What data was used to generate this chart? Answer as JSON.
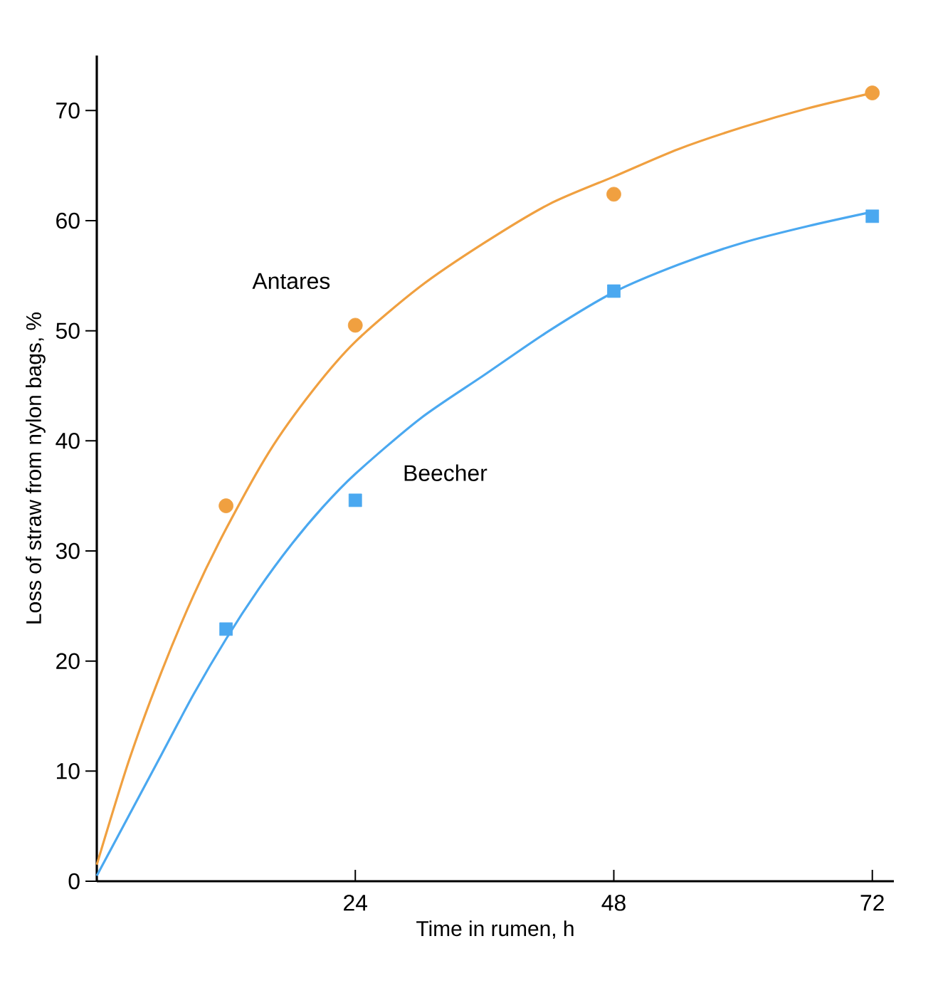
{
  "chart_data": {
    "type": "scatter",
    "xlabel": "Time in rumen,  h",
    "ylabel": "Loss of straw from nylon bags,  %",
    "xlim": [
      0,
      74
    ],
    "ylim": [
      0,
      75
    ],
    "xticks": [
      24,
      48,
      72
    ],
    "yticks": [
      0,
      10,
      20,
      30,
      40,
      50,
      60,
      70
    ],
    "grid": false,
    "legend": false,
    "series": [
      {
        "name": "Antares",
        "marker": "circle",
        "color": "#f0a040",
        "x": [
          12,
          24,
          48,
          72
        ],
        "values": [
          34.1,
          50.5,
          62.4,
          71.6
        ]
      },
      {
        "name": "Beecher",
        "marker": "square",
        "color": "#4aa8f0",
        "x": [
          12,
          24,
          48,
          72
        ],
        "values": [
          22.9,
          34.6,
          53.6,
          60.4
        ]
      },
      {
        "type": "line",
        "marker": "none",
        "line_style": "solid",
        "color": "#f0a040",
        "x": [
          0,
          3,
          6,
          9,
          12,
          16,
          20,
          24,
          30,
          36,
          42,
          48,
          54,
          60,
          66,
          72
        ],
        "values": [
          1.5,
          11,
          19,
          26,
          32,
          39,
          44.5,
          49,
          54,
          58,
          61.5,
          64,
          66.5,
          68.5,
          70.2,
          71.6
        ]
      },
      {
        "type": "line",
        "marker": "none",
        "line_style": "solid",
        "color": "#4aa8f0",
        "x": [
          0,
          3,
          6,
          9,
          12,
          15,
          18,
          21,
          24,
          30,
          36,
          42,
          48,
          54,
          60,
          66,
          72
        ],
        "values": [
          0.5,
          6,
          11.5,
          17,
          22,
          26.5,
          30.5,
          34,
          37,
          42,
          46,
          50,
          53.5,
          56,
          58,
          59.5,
          60.8
        ]
      }
    ]
  }
}
